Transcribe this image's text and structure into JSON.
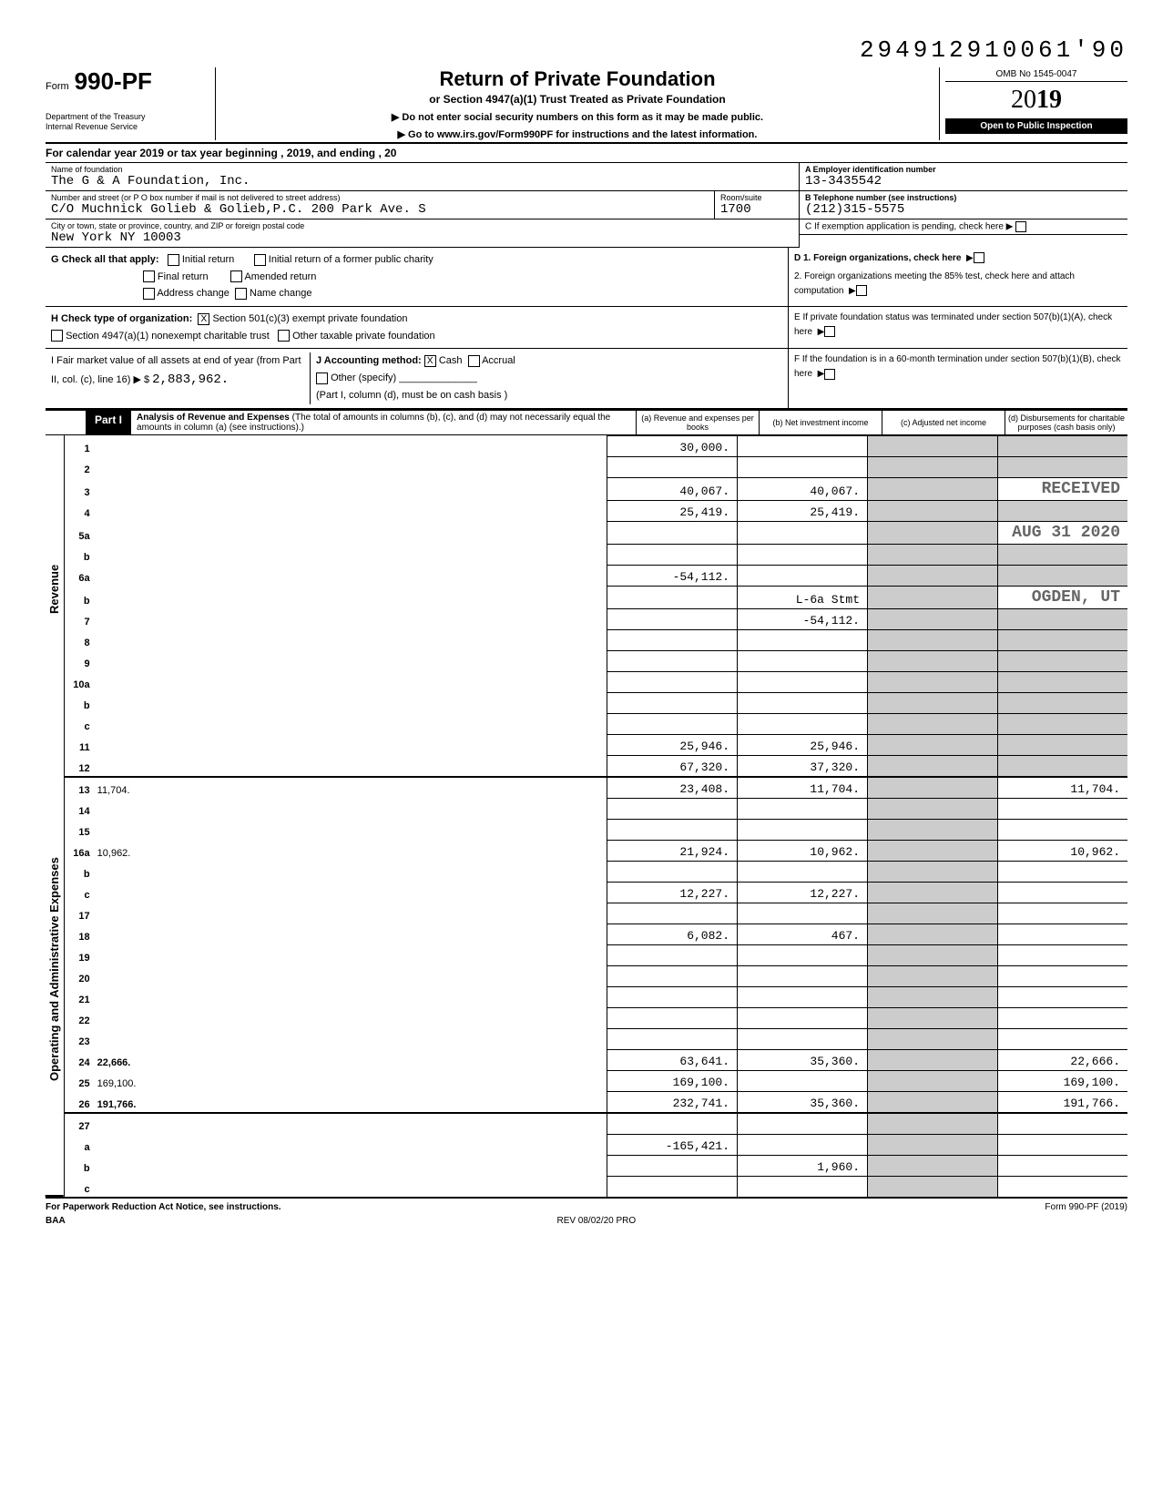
{
  "top_number": "294912910061'90",
  "form": {
    "word": "Form",
    "number": "990-PF",
    "dept1": "Department of the Treasury",
    "dept2": "Internal Revenue Service"
  },
  "title": {
    "main": "Return of Private Foundation",
    "sub": "or Section 4947(a)(1) Trust Treated as Private Foundation",
    "instr1": "▶ Do not enter social security numbers on this form as it may be made public.",
    "instr2": "▶ Go to www.irs.gov/Form990PF for instructions and the latest information."
  },
  "yearbox": {
    "omb": "OMB No 1545-0047",
    "year_prefix": "20",
    "year_bold": "19",
    "open": "Open to Public Inspection"
  },
  "cal_year": "For calendar year 2019 or tax year beginning                                  , 2019, and ending                                  , 20",
  "name_label": "Name of foundation",
  "name": "The G & A Foundation, Inc.",
  "addr_label": "Number and street (or P O box number if mail is not delivered to street address)",
  "addr": "C/O Muchnick Golieb & Golieb,P.C. 200 Park Ave. S",
  "room_label": "Room/suite",
  "room": "1700",
  "city_label": "City or town, state or province, country, and ZIP or foreign postal code",
  "city": "New York NY 10003",
  "ein_label": "A  Employer identification number",
  "ein": "13-3435542",
  "tel_label": "B  Telephone number (see instructions)",
  "tel": "(212)315-5575",
  "c_label": "C  If exemption application is pending, check here ▶",
  "g_label": "G  Check all that apply:",
  "g_opts": [
    "Initial return",
    "Final return",
    "Address change",
    "Initial return of a former public charity",
    "Amended return",
    "Name change"
  ],
  "d1": "D  1. Foreign organizations, check here",
  "d2": "2. Foreign organizations meeting the 85% test, check here and attach computation",
  "h_label": "H  Check type of organization:",
  "h_opts": [
    "Section 501(c)(3) exempt private foundation",
    "Section 4947(a)(1) nonexempt charitable trust",
    "Other taxable private foundation"
  ],
  "e_label": "E  If private foundation status was terminated under section 507(b)(1)(A), check here",
  "i_label": "I   Fair market value of all assets at end of year (from Part II, col. (c), line 16) ▶ $",
  "i_val": "2,883,962.",
  "j_label": "J  Accounting method:",
  "j_opts": [
    "Cash",
    "Accrual",
    "Other (specify)"
  ],
  "j_note": "(Part I, column (d), must be on cash basis )",
  "f_label": "F  If the foundation is in a 60-month termination under section 507(b)(1)(B), check here",
  "part1": {
    "label": "Part I",
    "title": "Analysis of Revenue and Expenses",
    "note": "(The total of amounts in columns (b), (c), and (d) may not necessarily equal the amounts in column (a) (see instructions).)",
    "col_a": "(a) Revenue and expenses per books",
    "col_b": "(b) Net investment income",
    "col_c": "(c) Adjusted net income",
    "col_d": "(d) Disbursements for charitable purposes (cash basis only)"
  },
  "revenue_label": "Revenue",
  "opex_label": "Operating and Administrative Expenses",
  "stamps": {
    "received": "RECEIVED",
    "date": "AUG 31 2020",
    "ogden": "OGDEN, UT"
  },
  "rows": [
    {
      "n": "1",
      "d": "",
      "a": "30,000.",
      "b": "",
      "c": ""
    },
    {
      "n": "2",
      "d": "",
      "a": "",
      "b": "",
      "c": ""
    },
    {
      "n": "3",
      "d": "",
      "a": "40,067.",
      "b": "40,067.",
      "c": ""
    },
    {
      "n": "4",
      "d": "",
      "a": "25,419.",
      "b": "25,419.",
      "c": ""
    },
    {
      "n": "5a",
      "d": "",
      "a": "",
      "b": "",
      "c": ""
    },
    {
      "n": "b",
      "d": "",
      "a": "",
      "b": "",
      "c": ""
    },
    {
      "n": "6a",
      "d": "",
      "a": "-54,112.",
      "b": "",
      "c": ""
    },
    {
      "n": "b",
      "d": "",
      "a": "",
      "b": "L-6a Stmt",
      "c": ""
    },
    {
      "n": "7",
      "d": "",
      "a": "",
      "b": "-54,112.",
      "c": ""
    },
    {
      "n": "8",
      "d": "",
      "a": "",
      "b": "",
      "c": ""
    },
    {
      "n": "9",
      "d": "",
      "a": "",
      "b": "",
      "c": ""
    },
    {
      "n": "10a",
      "d": "",
      "a": "",
      "b": "",
      "c": ""
    },
    {
      "n": "b",
      "d": "",
      "a": "",
      "b": "",
      "c": ""
    },
    {
      "n": "c",
      "d": "",
      "a": "",
      "b": "",
      "c": ""
    },
    {
      "n": "11",
      "d": "",
      "a": "25,946.",
      "b": "25,946.",
      "c": ""
    },
    {
      "n": "12",
      "d": "",
      "a": "67,320.",
      "b": "37,320.",
      "c": "",
      "bold": true
    },
    {
      "n": "13",
      "d": "11,704.",
      "a": "23,408.",
      "b": "11,704.",
      "c": ""
    },
    {
      "n": "14",
      "d": "",
      "a": "",
      "b": "",
      "c": ""
    },
    {
      "n": "15",
      "d": "",
      "a": "",
      "b": "",
      "c": ""
    },
    {
      "n": "16a",
      "d": "10,962.",
      "a": "21,924.",
      "b": "10,962.",
      "c": ""
    },
    {
      "n": "b",
      "d": "",
      "a": "",
      "b": "",
      "c": ""
    },
    {
      "n": "c",
      "d": "",
      "a": "12,227.",
      "b": "12,227.",
      "c": ""
    },
    {
      "n": "17",
      "d": "",
      "a": "",
      "b": "",
      "c": ""
    },
    {
      "n": "18",
      "d": "",
      "a": "6,082.",
      "b": "467.",
      "c": ""
    },
    {
      "n": "19",
      "d": "",
      "a": "",
      "b": "",
      "c": ""
    },
    {
      "n": "20",
      "d": "",
      "a": "",
      "b": "",
      "c": ""
    },
    {
      "n": "21",
      "d": "",
      "a": "",
      "b": "",
      "c": ""
    },
    {
      "n": "22",
      "d": "",
      "a": "",
      "b": "",
      "c": ""
    },
    {
      "n": "23",
      "d": "",
      "a": "",
      "b": "",
      "c": ""
    },
    {
      "n": "24",
      "d": "22,666.",
      "a": "63,641.",
      "b": "35,360.",
      "c": "",
      "bold": true
    },
    {
      "n": "25",
      "d": "169,100.",
      "a": "169,100.",
      "b": "",
      "c": ""
    },
    {
      "n": "26",
      "d": "191,766.",
      "a": "232,741.",
      "b": "35,360.",
      "c": "",
      "bold": true
    },
    {
      "n": "27",
      "d": "",
      "a": "",
      "b": "",
      "c": ""
    },
    {
      "n": "a",
      "d": "",
      "a": "-165,421.",
      "b": "",
      "c": "",
      "bold": true
    },
    {
      "n": "b",
      "d": "",
      "a": "",
      "b": "1,960.",
      "c": "",
      "bold": true
    },
    {
      "n": "c",
      "d": "",
      "a": "",
      "b": "",
      "c": "",
      "bold": true
    }
  ],
  "footer": {
    "left": "For Paperwork Reduction Act Notice, see instructions.",
    "baa": "BAA",
    "rev": "REV 08/02/20 PRO",
    "right": "Form 990-PF (2019)"
  }
}
